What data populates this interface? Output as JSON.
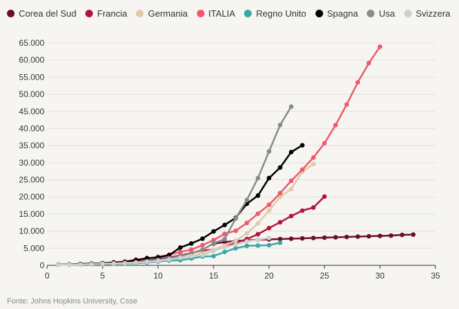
{
  "chart_data": {
    "type": "line",
    "title": "",
    "xlabel": "",
    "ylabel": "",
    "xlim": [
      0,
      35
    ],
    "ylim": [
      0,
      65000
    ],
    "x_ticks": [
      "0",
      "5",
      "10",
      "15",
      "20",
      "25",
      "30",
      "35"
    ],
    "y_ticks": [
      "0",
      "5.000",
      "10.000",
      "15.000",
      "20.000",
      "25.000",
      "30.000",
      "35.000",
      "40.000",
      "45.000",
      "50.000",
      "55.000",
      "60.000",
      "65.000"
    ],
    "legend_position": "top",
    "series": [
      {
        "name": "Corea del Sud",
        "color": "#6b0f2b",
        "x": [
          15,
          16,
          17,
          18,
          19,
          20,
          21,
          22,
          23,
          24,
          25,
          26,
          27,
          28,
          29,
          30,
          31,
          32,
          33
        ],
        "y": [
          6300,
          6800,
          7100,
          7300,
          7500,
          7600,
          7700,
          7800,
          7900,
          8000,
          8100,
          8200,
          8300,
          8400,
          8500,
          8600,
          8700,
          8900,
          9000
        ]
      },
      {
        "name": "Francia",
        "color": "#b5143f",
        "x": [
          1,
          2,
          3,
          4,
          5,
          6,
          7,
          8,
          9,
          10,
          11,
          12,
          13,
          14,
          15,
          16,
          17,
          18,
          19,
          20,
          21,
          22,
          23,
          24,
          25
        ],
        "y": [
          200,
          250,
          300,
          400,
          500,
          700,
          900,
          1100,
          1400,
          1800,
          2300,
          2900,
          3600,
          4400,
          4500,
          5400,
          6600,
          7700,
          9100,
          10900,
          12600,
          14400,
          16000,
          16900,
          20100
        ]
      },
      {
        "name": "Germania",
        "color": "#e3c9a8",
        "x": [
          1,
          2,
          3,
          4,
          5,
          6,
          7,
          8,
          9,
          10,
          11,
          12,
          13,
          14,
          15,
          16,
          17,
          18,
          19,
          20,
          21,
          22,
          23,
          24
        ],
        "y": [
          150,
          200,
          250,
          350,
          450,
          550,
          700,
          800,
          1100,
          1300,
          1600,
          2000,
          2700,
          3700,
          4600,
          5800,
          7200,
          9300,
          12300,
          16000,
          20000,
          22300,
          27400,
          29600
        ]
      },
      {
        "name": "ITALIA",
        "color": "#ec5a6c",
        "x": [
          1,
          2,
          3,
          4,
          5,
          6,
          7,
          8,
          9,
          10,
          11,
          12,
          13,
          14,
          15,
          16,
          17,
          18,
          19,
          20,
          21,
          22,
          23,
          24,
          25,
          26,
          27,
          28,
          29,
          30
        ],
        "y": [
          150,
          230,
          320,
          450,
          650,
          890,
          1130,
          1700,
          2000,
          2500,
          3100,
          3900,
          4600,
          5900,
          7400,
          9200,
          10100,
          12400,
          15100,
          17700,
          21100,
          24700,
          27980,
          31500,
          35700,
          41000,
          47000,
          53500,
          59100,
          63900
        ]
      },
      {
        "name": "Regno Unito",
        "color": "#3aa8a6",
        "x": [
          1,
          2,
          3,
          4,
          5,
          6,
          7,
          8,
          9,
          10,
          11,
          12,
          13,
          14,
          15,
          16,
          17,
          18,
          19,
          20,
          21
        ],
        "y": [
          150,
          200,
          250,
          300,
          350,
          450,
          550,
          600,
          800,
          1100,
          1400,
          1500,
          2000,
          2600,
          2700,
          3900,
          5000,
          5700,
          5800,
          5900,
          6600
        ]
      },
      {
        "name": "Spagna",
        "color": "#000000",
        "x": [
          1,
          2,
          3,
          4,
          5,
          6,
          7,
          8,
          9,
          10,
          11,
          12,
          13,
          14,
          15,
          16,
          17,
          18,
          19,
          20,
          21,
          22,
          23
        ],
        "y": [
          200,
          300,
          400,
          500,
          600,
          800,
          1000,
          1500,
          2100,
          2300,
          3000,
          5200,
          6400,
          7800,
          9900,
          11800,
          13900,
          18000,
          20400,
          25500,
          28600,
          33100,
          35100
        ]
      },
      {
        "name": "Usa",
        "color": "#8a8a8a",
        "x": [
          1,
          2,
          3,
          4,
          5,
          6,
          7,
          8,
          9,
          10,
          11,
          12,
          13,
          14,
          15,
          16,
          17,
          18,
          19,
          20,
          21,
          22
        ],
        "y": [
          150,
          200,
          250,
          300,
          450,
          550,
          700,
          900,
          1200,
          1600,
          2100,
          2700,
          3500,
          4600,
          6400,
          7700,
          13700,
          19100,
          25500,
          33300,
          41000,
          46400
        ]
      },
      {
        "name": "Svizzera",
        "color": "#cfcfcf",
        "x": [
          1,
          2,
          3,
          4,
          5,
          6,
          7,
          8,
          9,
          10,
          11,
          12,
          13,
          14,
          15,
          16,
          17,
          18,
          19,
          20
        ],
        "y": [
          150,
          200,
          250,
          350,
          450,
          550,
          650,
          800,
          1000,
          1300,
          1700,
          2200,
          2700,
          3000,
          4200,
          5300,
          6100,
          7000,
          7500,
          8000
        ]
      }
    ]
  },
  "footer": {
    "source": "Fonte: Johns Hopkins University, Csse"
  }
}
